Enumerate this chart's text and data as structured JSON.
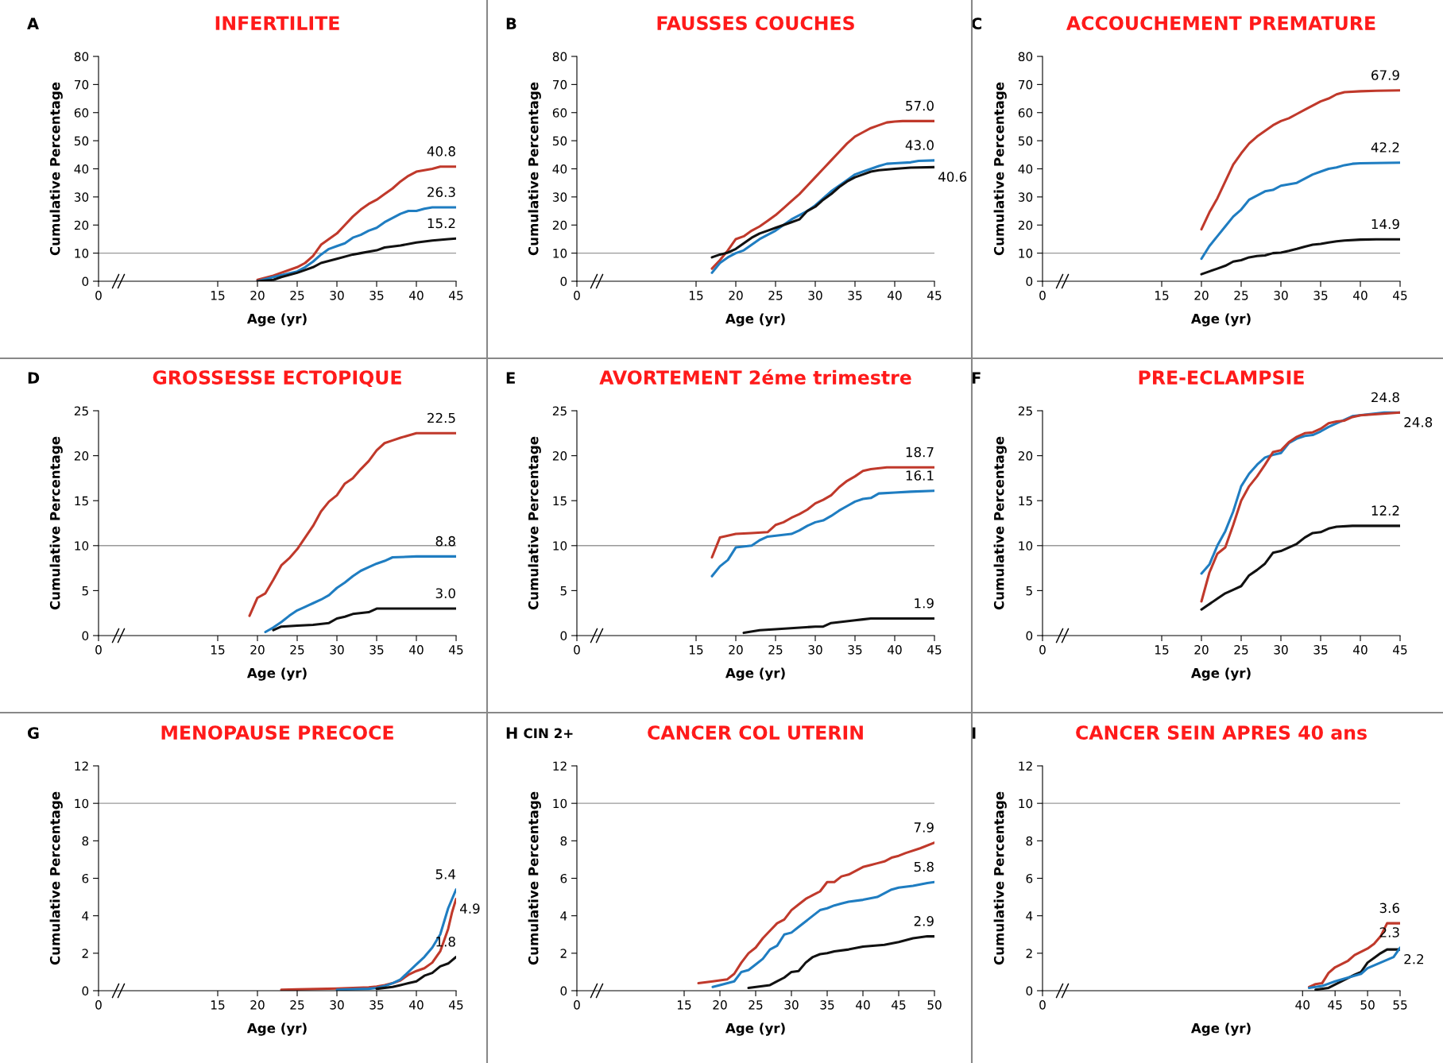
{
  "chart_data": [
    {
      "type": "line",
      "title": "INFERTILITE",
      "xlabel": "Age (yr)",
      "ylabel": "Cumulative Percentage",
      "xlim": [
        0,
        45
      ],
      "xticks": [
        0,
        15,
        20,
        25,
        30,
        35,
        40,
        45
      ],
      "ylim": [
        0,
        80
      ],
      "yticks": [
        0,
        10,
        20,
        30,
        40,
        50,
        60,
        70,
        80
      ],
      "ref_lines": [
        {
          "axis": "y",
          "value": 10,
          "color": "#999999"
        }
      ],
      "series": [
        {
          "color": "#c0392b",
          "x": [
            20,
            22,
            25,
            26,
            27,
            28,
            30,
            31,
            32,
            33,
            34,
            35,
            36,
            37,
            38,
            39,
            40,
            42,
            43,
            45
          ],
          "values": [
            0.5,
            2,
            5,
            6.5,
            9,
            13,
            17,
            20,
            23,
            25.5,
            27.5,
            29,
            31,
            33,
            35.5,
            37.5,
            39,
            40,
            40.8,
            40.8
          ]
        },
        {
          "color": "#1f7dc1",
          "x": [
            20,
            22,
            25,
            26,
            27,
            28,
            29,
            30,
            31,
            32,
            33,
            34,
            35,
            36,
            37,
            38,
            39,
            40,
            41,
            42,
            45
          ],
          "values": [
            0,
            1.5,
            3.5,
            5,
            7,
            9.5,
            11.5,
            12.5,
            13.5,
            15.5,
            16.5,
            18,
            19,
            21,
            22.5,
            24,
            25,
            25,
            25.8,
            26.3,
            26.3
          ]
        },
        {
          "color": "#111111",
          "x": [
            20,
            22,
            23,
            25,
            26,
            27,
            28,
            30,
            32,
            33,
            34,
            35,
            36,
            38,
            40,
            42,
            44,
            45
          ],
          "values": [
            0,
            0.5,
            1.5,
            3,
            4,
            5,
            6.5,
            8,
            9.5,
            10,
            10.5,
            11,
            12,
            12.7,
            13.8,
            14.5,
            15,
            15.2
          ]
        }
      ],
      "annotations": [
        "A",
        {
          "text": "40.8",
          "x": 45,
          "y": 40.8
        },
        {
          "text": "26.3",
          "x": 45,
          "y": 26.3
        },
        {
          "text": "15.2",
          "x": 45,
          "y": 15.2
        }
      ]
    },
    {
      "type": "line",
      "title": "FAUSSES COUCHES",
      "xlabel": "Age (yr)",
      "ylabel": "Cumulative Percentage",
      "xlim": [
        0,
        45
      ],
      "xticks": [
        0,
        15,
        20,
        25,
        30,
        35,
        40,
        45
      ],
      "ylim": [
        0,
        80
      ],
      "yticks": [
        0,
        10,
        20,
        30,
        40,
        50,
        60,
        70,
        80
      ],
      "ref_lines": [
        {
          "axis": "y",
          "value": 10,
          "color": "#999999"
        }
      ],
      "series": [
        {
          "color": "#c0392b",
          "x": [
            17,
            18,
            19,
            20,
            21,
            22,
            23,
            24,
            25,
            26,
            27,
            28,
            29,
            30,
            31,
            32,
            33,
            34,
            35,
            36,
            37,
            38,
            39,
            40,
            41,
            45
          ],
          "values": [
            4.5,
            7.5,
            11,
            15,
            16,
            18,
            19.5,
            21.5,
            23.5,
            26,
            28.5,
            31,
            34,
            37,
            40,
            43,
            46,
            49,
            51.5,
            53,
            54.5,
            55.5,
            56.5,
            56.8,
            57,
            57.0
          ]
        },
        {
          "color": "#1f7dc1",
          "x": [
            17,
            18,
            19,
            20,
            21,
            22,
            23,
            24,
            25,
            26,
            27,
            28,
            29,
            30,
            31,
            32,
            33,
            34,
            35,
            36,
            37,
            38,
            39,
            40,
            42,
            43,
            45
          ],
          "values": [
            3,
            6.5,
            8.5,
            10,
            11,
            13,
            15,
            16.5,
            18,
            20,
            22,
            23.5,
            25,
            27,
            29.5,
            32,
            34,
            36,
            38,
            39,
            40,
            41,
            41.8,
            42,
            42.3,
            42.8,
            43.0
          ]
        },
        {
          "color": "#111111",
          "x": [
            17,
            18,
            19,
            20,
            21,
            22,
            23,
            24,
            25,
            26,
            27,
            28,
            29,
            30,
            31,
            32,
            33,
            34,
            35,
            36,
            37,
            38,
            40,
            42,
            45
          ],
          "values": [
            8.5,
            9.5,
            10.2,
            11.5,
            13.5,
            15.5,
            17,
            18,
            19,
            20,
            21,
            22,
            25,
            26.5,
            29,
            31,
            33.5,
            35.5,
            37,
            38,
            39,
            39.5,
            40,
            40.4,
            40.6
          ]
        }
      ],
      "annotations": [
        "B",
        {
          "text": "57.0",
          "x": 45,
          "y": 57.0
        },
        {
          "text": "43.0",
          "x": 45,
          "y": 43.0
        },
        {
          "text": "40.6",
          "x": 45,
          "y": 40.6
        }
      ]
    },
    {
      "type": "line",
      "title": "ACCOUCHEMENT PREMATURE",
      "xlabel": "Age (yr)",
      "ylabel": "Cumulative Percentage",
      "xlim": [
        0,
        45
      ],
      "xticks": [
        0,
        15,
        20,
        25,
        30,
        35,
        40,
        45
      ],
      "ylim": [
        0,
        80
      ],
      "yticks": [
        0,
        10,
        20,
        30,
        40,
        50,
        60,
        70,
        80
      ],
      "ref_lines": [
        {
          "axis": "y",
          "value": 10,
          "color": "#999999"
        }
      ],
      "series": [
        {
          "color": "#c0392b",
          "x": [
            20,
            21,
            22,
            23,
            24,
            25,
            26,
            27,
            28,
            29,
            30,
            31,
            32,
            33,
            34,
            35,
            36,
            37,
            38,
            40,
            42,
            45
          ],
          "values": [
            18.5,
            24.5,
            29.5,
            35.5,
            41.5,
            45.5,
            49,
            51.5,
            53.5,
            55.5,
            57,
            58,
            59.5,
            61,
            62.5,
            64,
            65,
            66.5,
            67.3,
            67.6,
            67.8,
            67.9
          ]
        },
        {
          "color": "#1f7dc1",
          "x": [
            20,
            21,
            22,
            23,
            24,
            25,
            26,
            27,
            28,
            29,
            30,
            31,
            32,
            33,
            34,
            35,
            36,
            37,
            38,
            39,
            40,
            45
          ],
          "values": [
            8,
            12.5,
            16,
            19.5,
            23,
            25.5,
            29,
            30.5,
            32,
            32.5,
            34,
            34.5,
            35,
            36.5,
            38,
            39,
            40,
            40.5,
            41.3,
            41.8,
            42,
            42.2
          ]
        },
        {
          "color": "#111111",
          "x": [
            20,
            21,
            22,
            23,
            24,
            25,
            26,
            27,
            28,
            29,
            30,
            31,
            32,
            33,
            34,
            35,
            36,
            37,
            38,
            40,
            42,
            45
          ],
          "values": [
            2.5,
            3.5,
            4.5,
            5.5,
            7,
            7.5,
            8.5,
            9,
            9.2,
            10,
            10.2,
            10.8,
            11.5,
            12.3,
            13,
            13.3,
            13.8,
            14.2,
            14.5,
            14.8,
            14.9,
            14.9
          ]
        }
      ],
      "annotations": [
        "C",
        {
          "text": "67.9",
          "x": 45,
          "y": 67.9
        },
        {
          "text": "42.2",
          "x": 45,
          "y": 42.2
        },
        {
          "text": "14.9",
          "x": 45,
          "y": 14.9
        }
      ]
    },
    {
      "type": "line",
      "title": "GROSSESSE ECTOPIQUE",
      "xlabel": "Age (yr)",
      "ylabel": "Cumulative Percentage",
      "xlim": [
        0,
        45
      ],
      "xticks": [
        0,
        15,
        20,
        25,
        30,
        35,
        40,
        45
      ],
      "ylim": [
        0,
        25
      ],
      "yticks": [
        0,
        5,
        10,
        15,
        20,
        25
      ],
      "ref_lines": [
        {
          "axis": "y",
          "value": 10,
          "color": "#999999"
        }
      ],
      "series": [
        {
          "color": "#c0392b",
          "x": [
            19,
            20,
            21,
            22,
            23,
            24,
            25,
            26,
            27,
            28,
            29,
            30,
            31,
            32,
            33,
            34,
            35,
            36,
            37,
            38,
            40,
            45
          ],
          "values": [
            2.2,
            4.2,
            4.7,
            6.2,
            7.8,
            8.6,
            9.6,
            10.9,
            12.2,
            13.8,
            14.9,
            15.6,
            16.9,
            17.5,
            18.5,
            19.4,
            20.6,
            21.4,
            21.7,
            22.0,
            22.5,
            22.5
          ]
        },
        {
          "color": "#1f7dc1",
          "x": [
            21,
            22,
            23,
            24,
            25,
            26,
            27,
            28,
            29,
            30,
            31,
            32,
            33,
            34,
            35,
            36,
            37,
            40,
            45
          ],
          "values": [
            0.4,
            0.9,
            1.5,
            2.2,
            2.8,
            3.2,
            3.6,
            4.0,
            4.5,
            5.3,
            5.9,
            6.6,
            7.2,
            7.6,
            8.0,
            8.3,
            8.7,
            8.8,
            8.8
          ]
        },
        {
          "color": "#111111",
          "x": [
            22,
            23,
            25,
            27,
            29,
            30,
            31,
            32,
            34,
            35,
            45
          ],
          "values": [
            0.6,
            1.0,
            1.1,
            1.2,
            1.4,
            1.9,
            2.1,
            2.4,
            2.6,
            3.0,
            3.0
          ]
        }
      ],
      "annotations": [
        "D",
        {
          "text": "22.5",
          "x": 45,
          "y": 22.5
        },
        {
          "text": "8.8",
          "x": 45,
          "y": 8.8
        },
        {
          "text": "3.0",
          "x": 45,
          "y": 3.0
        }
      ]
    },
    {
      "type": "line",
      "title": "AVORTEMENT 2éme trimestre",
      "xlabel": "Age (yr)",
      "ylabel": "Cumulative Percentage",
      "xlim": [
        0,
        45
      ],
      "xticks": [
        0,
        15,
        20,
        25,
        30,
        35,
        40,
        45
      ],
      "ylim": [
        0,
        25
      ],
      "yticks": [
        0,
        5,
        10,
        15,
        20,
        25
      ],
      "ref_lines": [
        {
          "axis": "y",
          "value": 10,
          "color": "#999999"
        }
      ],
      "series": [
        {
          "color": "#c0392b",
          "x": [
            17,
            18,
            19,
            20,
            22,
            24,
            25,
            26,
            27,
            28,
            29,
            30,
            31,
            32,
            33,
            34,
            35,
            36,
            37,
            39,
            45
          ],
          "values": [
            8.7,
            10.9,
            11.1,
            11.3,
            11.4,
            11.5,
            12.3,
            12.6,
            13.1,
            13.5,
            14.0,
            14.7,
            15.1,
            15.6,
            16.5,
            17.2,
            17.7,
            18.3,
            18.5,
            18.7,
            18.7
          ]
        },
        {
          "color": "#1f7dc1",
          "x": [
            17,
            18,
            19,
            20,
            22,
            23,
            24,
            27,
            28,
            29,
            30,
            31,
            32,
            33,
            34,
            35,
            36,
            37,
            38,
            40,
            42,
            45
          ],
          "values": [
            6.6,
            7.7,
            8.4,
            9.8,
            10.0,
            10.6,
            11.0,
            11.3,
            11.7,
            12.2,
            12.6,
            12.8,
            13.3,
            13.9,
            14.4,
            14.9,
            15.2,
            15.3,
            15.8,
            15.9,
            16.0,
            16.1
          ]
        },
        {
          "color": "#111111",
          "x": [
            21,
            23,
            25,
            30,
            31,
            32,
            35,
            36,
            37,
            45
          ],
          "values": [
            0.3,
            0.6,
            0.7,
            1.0,
            1.0,
            1.4,
            1.7,
            1.8,
            1.9,
            1.9
          ]
        }
      ],
      "annotations": [
        "E",
        {
          "text": "18.7",
          "x": 45,
          "y": 18.7
        },
        {
          "text": "16.1",
          "x": 45,
          "y": 16.1
        },
        {
          "text": "1.9",
          "x": 45,
          "y": 1.9
        }
      ]
    },
    {
      "type": "line",
      "title": "PRE-ECLAMPSIE",
      "xlabel": "Age (yr)",
      "ylabel": "Cumulative Percentage",
      "xlim": [
        0,
        45
      ],
      "xticks": [
        0,
        15,
        20,
        25,
        30,
        35,
        40,
        45
      ],
      "ylim": [
        0,
        25
      ],
      "yticks": [
        0,
        5,
        10,
        15,
        20,
        25
      ],
      "ref_lines": [
        {
          "axis": "y",
          "value": 10,
          "color": "#999999"
        }
      ],
      "series": [
        {
          "color": "#1f7dc1",
          "x": [
            20,
            21,
            22,
            23,
            24,
            25,
            26,
            27,
            28,
            29,
            30,
            31,
            32,
            33,
            34,
            35,
            36,
            37,
            38,
            39,
            41,
            43,
            45
          ],
          "values": [
            6.9,
            7.9,
            10.0,
            11.6,
            13.8,
            16.6,
            18.0,
            19.0,
            19.8,
            20.1,
            20.3,
            21.4,
            21.9,
            22.2,
            22.3,
            22.7,
            23.2,
            23.6,
            24.0,
            24.4,
            24.6,
            24.8,
            24.8
          ]
        },
        {
          "color": "#c0392b",
          "x": [
            20,
            21,
            22,
            23,
            24,
            25,
            26,
            27,
            28,
            29,
            30,
            31,
            32,
            33,
            34,
            35,
            36,
            37,
            38,
            39,
            40,
            45
          ],
          "values": [
            3.8,
            7.0,
            9.1,
            9.8,
            12.3,
            15.0,
            16.6,
            17.7,
            19.0,
            20.4,
            20.6,
            21.5,
            22.1,
            22.5,
            22.6,
            23.0,
            23.6,
            23.8,
            23.9,
            24.3,
            24.5,
            24.8
          ]
        },
        {
          "color": "#111111",
          "x": [
            20,
            21,
            22,
            23,
            24,
            25,
            26,
            27,
            28,
            29,
            30,
            31,
            32,
            33,
            34,
            35,
            36,
            37,
            39,
            45
          ],
          "values": [
            2.9,
            3.5,
            4.1,
            4.7,
            5.1,
            5.5,
            6.7,
            7.3,
            8.0,
            9.2,
            9.4,
            9.8,
            10.2,
            10.9,
            11.4,
            11.5,
            11.9,
            12.1,
            12.2,
            12.2
          ]
        }
      ],
      "annotations": [
        "F",
        {
          "text": "24.8",
          "x": 45,
          "y": 24.8
        },
        {
          "text": "24.8",
          "x": 45,
          "y": 24.8
        },
        {
          "text": "12.2",
          "x": 45,
          "y": 12.2
        }
      ]
    },
    {
      "type": "line",
      "title": "MENOPAUSE PRECOCE",
      "xlabel": "Age (yr)",
      "ylabel": "Cumulative Percentage",
      "xlim": [
        0,
        45
      ],
      "xticks": [
        0,
        15,
        20,
        25,
        30,
        35,
        40,
        45
      ],
      "ylim": [
        0,
        12
      ],
      "yticks": [
        0,
        2,
        4,
        6,
        8,
        10,
        12
      ],
      "ref_lines": [
        {
          "axis": "y",
          "value": 10,
          "color": "#999999"
        }
      ],
      "series": [
        {
          "color": "#c0392b",
          "x": [
            23,
            25,
            30,
            34,
            35,
            36,
            37,
            38,
            39,
            40,
            41,
            42,
            43,
            44,
            44.5,
            45
          ],
          "values": [
            0.05,
            0.07,
            0.12,
            0.18,
            0.22,
            0.3,
            0.4,
            0.55,
            0.85,
            1.05,
            1.2,
            1.5,
            2.1,
            3.3,
            4.2,
            4.9
          ]
        },
        {
          "color": "#1f7dc1",
          "x": [
            30,
            34,
            35,
            36,
            37,
            38,
            39,
            40,
            41,
            42,
            43,
            44,
            45
          ],
          "values": [
            0.05,
            0.1,
            0.15,
            0.25,
            0.4,
            0.6,
            1.0,
            1.4,
            1.8,
            2.3,
            3.0,
            4.4,
            5.4
          ]
        },
        {
          "color": "#111111",
          "x": [
            35,
            37,
            38,
            39,
            40,
            41,
            42,
            43,
            44,
            45
          ],
          "values": [
            0.1,
            0.2,
            0.3,
            0.4,
            0.5,
            0.8,
            0.95,
            1.3,
            1.45,
            1.8
          ]
        }
      ],
      "annotations": [
        "G",
        {
          "text": "5.4",
          "x": 45,
          "y": 5.4
        },
        {
          "text": "4.9",
          "x": 45,
          "y": 4.9
        },
        {
          "text": "1.8",
          "x": 45,
          "y": 1.8
        }
      ]
    },
    {
      "type": "line",
      "title": "CANCER COL UTERIN",
      "xlabel": "Age (yr)",
      "ylabel": "Cumulative Percentage",
      "xlim": [
        0,
        50
      ],
      "xticks": [
        0,
        15,
        20,
        25,
        30,
        35,
        40,
        45,
        50
      ],
      "ylim": [
        0,
        12
      ],
      "yticks": [
        0,
        2,
        4,
        6,
        8,
        10,
        12
      ],
      "ref_lines": [
        {
          "axis": "y",
          "value": 10,
          "color": "#999999"
        }
      ],
      "series": [
        {
          "color": "#c0392b",
          "x": [
            17,
            19,
            21,
            22,
            23,
            24,
            25,
            26,
            27,
            28,
            29,
            30,
            31,
            32,
            33,
            34,
            35,
            36,
            37,
            38,
            39,
            40,
            41,
            42,
            43,
            44,
            45,
            46,
            48,
            50
          ],
          "values": [
            0.4,
            0.5,
            0.6,
            0.9,
            1.5,
            2.0,
            2.3,
            2.8,
            3.2,
            3.6,
            3.8,
            4.3,
            4.6,
            4.9,
            5.1,
            5.3,
            5.8,
            5.8,
            6.1,
            6.2,
            6.4,
            6.6,
            6.7,
            6.8,
            6.9,
            7.1,
            7.2,
            7.35,
            7.6,
            7.9
          ]
        },
        {
          "color": "#1f7dc1",
          "x": [
            19,
            20,
            22,
            23,
            24,
            25,
            26,
            27,
            28,
            29,
            30,
            31,
            32,
            33,
            34,
            35,
            36,
            37,
            38,
            40,
            42,
            43,
            44,
            45,
            47,
            49,
            50
          ],
          "values": [
            0.2,
            0.3,
            0.5,
            1.0,
            1.1,
            1.4,
            1.7,
            2.2,
            2.4,
            3.0,
            3.1,
            3.4,
            3.7,
            4.0,
            4.3,
            4.4,
            4.55,
            4.65,
            4.75,
            4.85,
            5.0,
            5.2,
            5.4,
            5.5,
            5.6,
            5.75,
            5.8
          ]
        },
        {
          "color": "#111111",
          "x": [
            24,
            27,
            28,
            29,
            30,
            31,
            32,
            33,
            34,
            35,
            36,
            38,
            40,
            43,
            45,
            47,
            49,
            50
          ],
          "values": [
            0.15,
            0.3,
            0.5,
            0.7,
            1.0,
            1.05,
            1.5,
            1.8,
            1.95,
            2.0,
            2.1,
            2.2,
            2.35,
            2.45,
            2.6,
            2.8,
            2.9,
            2.9
          ]
        }
      ],
      "annotations": [
        "H",
        "CIN 2+",
        {
          "text": "7.9",
          "x": 50,
          "y": 7.9
        },
        {
          "text": "5.8",
          "x": 50,
          "y": 5.8
        },
        {
          "text": "2.9",
          "x": 50,
          "y": 2.9
        }
      ]
    },
    {
      "type": "line",
      "title": "CANCER SEIN APRES 40 ans",
      "xlabel": "Age (yr)",
      "ylabel": "Cumulative Percentage",
      "xlim": [
        0,
        55
      ],
      "xticks": [
        0,
        40,
        45,
        50,
        55
      ],
      "ylim": [
        0,
        12
      ],
      "yticks": [
        0,
        2,
        4,
        6,
        8,
        10,
        12
      ],
      "ref_lines": [
        {
          "axis": "y",
          "value": 10,
          "color": "#999999"
        }
      ],
      "series": [
        {
          "color": "#c0392b",
          "x": [
            41,
            42,
            43,
            44,
            45,
            47,
            48,
            50,
            51,
            52,
            53,
            55
          ],
          "values": [
            0.2,
            0.35,
            0.4,
            0.95,
            1.25,
            1.6,
            1.9,
            2.25,
            2.5,
            2.9,
            3.6,
            3.6
          ]
        },
        {
          "color": "#111111",
          "x": [
            42,
            44,
            46,
            48,
            49,
            50,
            51,
            52,
            53,
            55
          ],
          "values": [
            0.05,
            0.15,
            0.5,
            0.85,
            1.0,
            1.5,
            1.75,
            2.0,
            2.2,
            2.2
          ]
        },
        {
          "color": "#1f7dc1",
          "x": [
            41,
            43,
            45,
            47,
            49,
            50,
            52,
            54,
            55
          ],
          "values": [
            0.15,
            0.25,
            0.5,
            0.7,
            0.9,
            1.2,
            1.5,
            1.8,
            2.3
          ]
        }
      ],
      "annotations": [
        "I",
        {
          "text": "3.6",
          "x": 55,
          "y": 3.6
        },
        {
          "text": "2.3",
          "x": 55,
          "y": 2.3
        },
        {
          "text": "2.2",
          "x": 55,
          "y": 2.2
        }
      ]
    }
  ]
}
